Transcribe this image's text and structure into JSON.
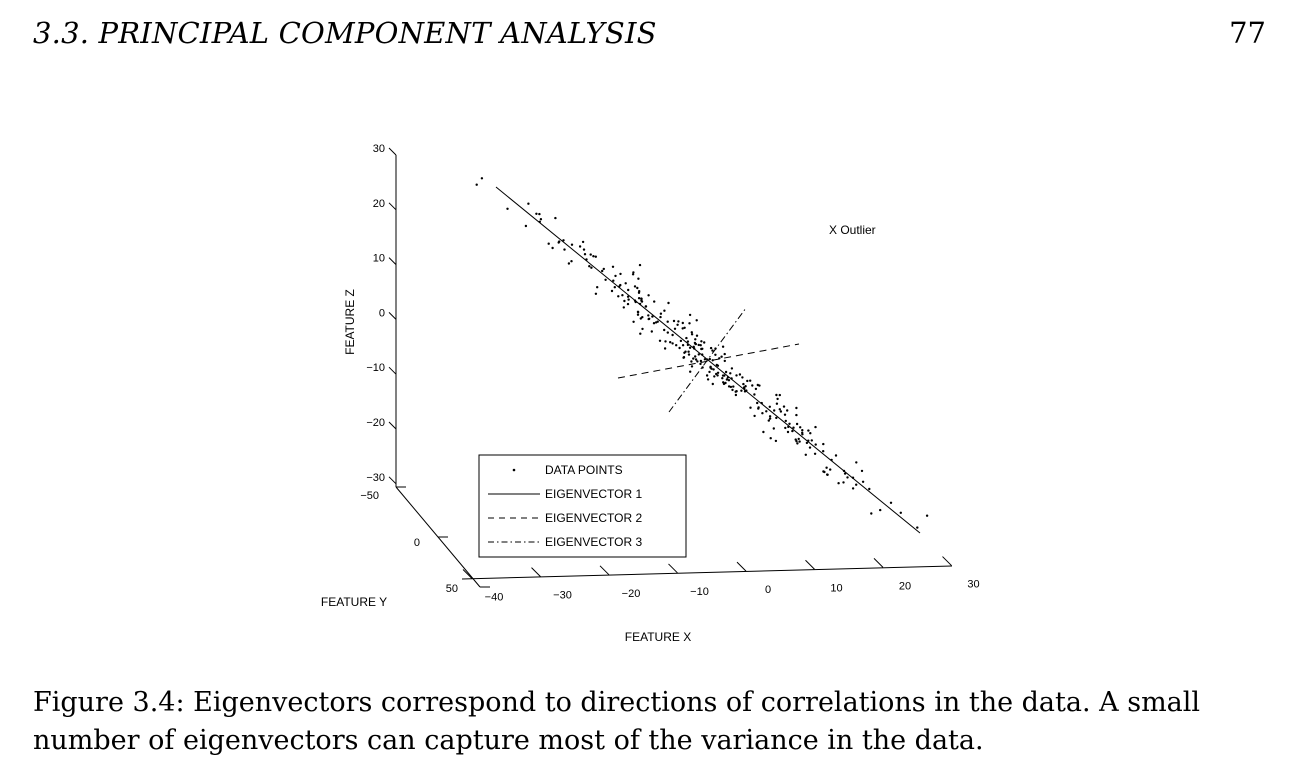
{
  "header": {
    "section_title": "3.3.  PRINCIPAL COMPONENT ANALYSIS",
    "page_number": "77"
  },
  "figure": {
    "annotation": "X Outlier",
    "legend": {
      "items": [
        {
          "label": "DATA POINTS",
          "style": "dot"
        },
        {
          "label": "EIGENVECTOR 1",
          "style": "solid"
        },
        {
          "label": "EIGENVECTOR 2",
          "style": "dashed"
        },
        {
          "label": "EIGENVECTOR 3",
          "style": "dashdot"
        }
      ]
    }
  },
  "chart_data": {
    "type": "scatter",
    "projection": "3d",
    "xlabel": "FEATURE X",
    "ylabel": "FEATURE Y",
    "zlabel": "FEATURE Z",
    "xlim": [
      -40,
      30
    ],
    "ylim": [
      -50,
      50
    ],
    "zlim": [
      -30,
      30
    ],
    "x_ticks": [
      "−40",
      "−30",
      "−20",
      "−10",
      "0",
      "10",
      "20",
      "30"
    ],
    "y_ticks": [
      "−50",
      "0",
      "50"
    ],
    "z_ticks": [
      "30",
      "20",
      "10",
      "0",
      "−10",
      "−20",
      "−30"
    ],
    "series": [
      {
        "name": "DATA POINTS",
        "kind": "points",
        "count": 300,
        "note": "cloud spread along eigenvector 1"
      },
      {
        "name": "EIGENVECTOR 1",
        "kind": "line",
        "style": "solid"
      },
      {
        "name": "EIGENVECTOR 2",
        "kind": "line",
        "style": "dashed"
      },
      {
        "name": "EIGENVECTOR 3",
        "kind": "line",
        "style": "dashdot"
      }
    ],
    "grid": false,
    "legend_position": "bottom-left"
  },
  "caption": "Figure 3.4: Eigenvectors correspond to directions of correlations in the data. A small number of eigenvectors can capture most of the variance in the data."
}
